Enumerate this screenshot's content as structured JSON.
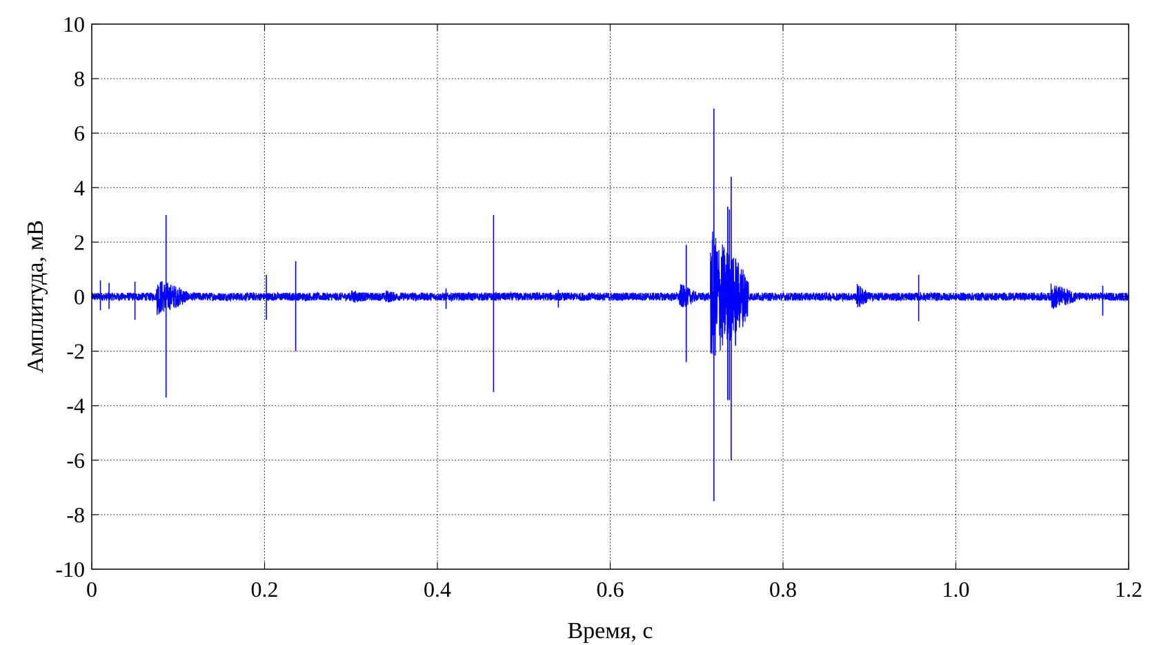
{
  "chart_data": {
    "type": "line",
    "title": "",
    "xlabel": "Время, с",
    "ylabel": "Амплитуда, мВ",
    "xlim": [
      0,
      1.2
    ],
    "ylim": [
      -10,
      10
    ],
    "x_ticks": [
      0,
      0.2,
      0.4,
      0.6,
      0.8,
      1.0,
      1.2
    ],
    "x_tick_labels": [
      "0",
      "0.2",
      "0.4",
      "0.6",
      "0.8",
      "1.0",
      "1.2"
    ],
    "y_ticks": [
      10,
      8,
      6,
      4,
      2,
      0,
      -2,
      -4,
      -6,
      -8,
      -10
    ],
    "y_tick_labels": [
      "10",
      "8",
      "6",
      "4",
      "2",
      "0",
      "-2",
      "-4",
      "-6",
      "-8",
      "-10"
    ],
    "grid": true,
    "grid_style": "dotted",
    "line_color": "#0000ff",
    "series": [
      {
        "baseline_noise_mV": 0.15,
        "spikes": [
          {
            "t": 0.01,
            "max": 0.6,
            "min": -0.5
          },
          {
            "t": 0.02,
            "max": 0.5,
            "min": -0.45
          },
          {
            "t": 0.05,
            "max": 0.55,
            "min": -0.85
          },
          {
            "t": 0.086,
            "max": 3.0,
            "min": -3.7
          },
          {
            "t": 0.202,
            "max": 0.8,
            "min": -0.85
          },
          {
            "t": 0.236,
            "max": 1.3,
            "min": -2.0
          },
          {
            "t": 0.41,
            "max": 0.3,
            "min": -0.45
          },
          {
            "t": 0.465,
            "max": 3.0,
            "min": -3.5
          },
          {
            "t": 0.54,
            "max": 0.25,
            "min": -0.4
          },
          {
            "t": 0.688,
            "max": 1.9,
            "min": -2.4
          },
          {
            "t": 0.72,
            "max": 6.9,
            "min": -7.5
          },
          {
            "t": 0.736,
            "max": 3.3,
            "min": -3.8
          },
          {
            "t": 0.738,
            "max": 3.2,
            "min": -3.8
          },
          {
            "t": 0.74,
            "max": 4.4,
            "min": -6.0
          },
          {
            "t": 0.745,
            "max": 1.4,
            "min": -1.8
          },
          {
            "t": 0.957,
            "max": 0.8,
            "min": -0.9
          },
          {
            "t": 1.17,
            "max": 0.4,
            "min": -0.7
          }
        ],
        "bursts": [
          {
            "t0": 0.075,
            "t1": 0.11,
            "amp": 0.7
          },
          {
            "t0": 0.3,
            "t1": 0.33,
            "amp": 0.25
          },
          {
            "t0": 0.34,
            "t1": 0.36,
            "amp": 0.25
          },
          {
            "t0": 0.68,
            "t1": 0.7,
            "amp": 0.5
          },
          {
            "t0": 0.716,
            "t1": 0.76,
            "amp": 2.5
          },
          {
            "t0": 0.885,
            "t1": 0.9,
            "amp": 0.5
          },
          {
            "t0": 1.11,
            "t1": 1.14,
            "amp": 0.5
          }
        ]
      }
    ]
  }
}
